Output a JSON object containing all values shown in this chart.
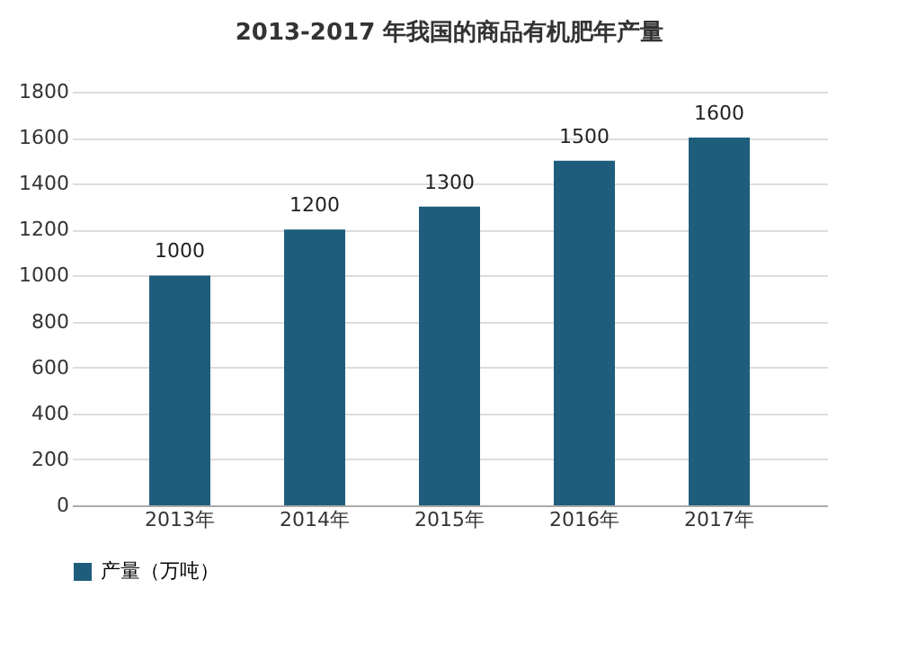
{
  "chart_data": {
    "type": "bar",
    "title": "2013-2017 年我国的商品有机肥年产量",
    "categories": [
      "2013年",
      "2014年",
      "2015年",
      "2016年",
      "2017年"
    ],
    "series": [
      {
        "name": "产量（万吨）",
        "color": "#1f5d7c",
        "values": [
          1000,
          1200,
          1300,
          1500,
          1600
        ]
      }
    ],
    "ylim": [
      0,
      1800
    ],
    "yticks": [
      0,
      200,
      400,
      600,
      800,
      1000,
      1200,
      1400,
      1600,
      1800
    ],
    "grid": "y",
    "legend": "bottom",
    "data_labels": true
  }
}
